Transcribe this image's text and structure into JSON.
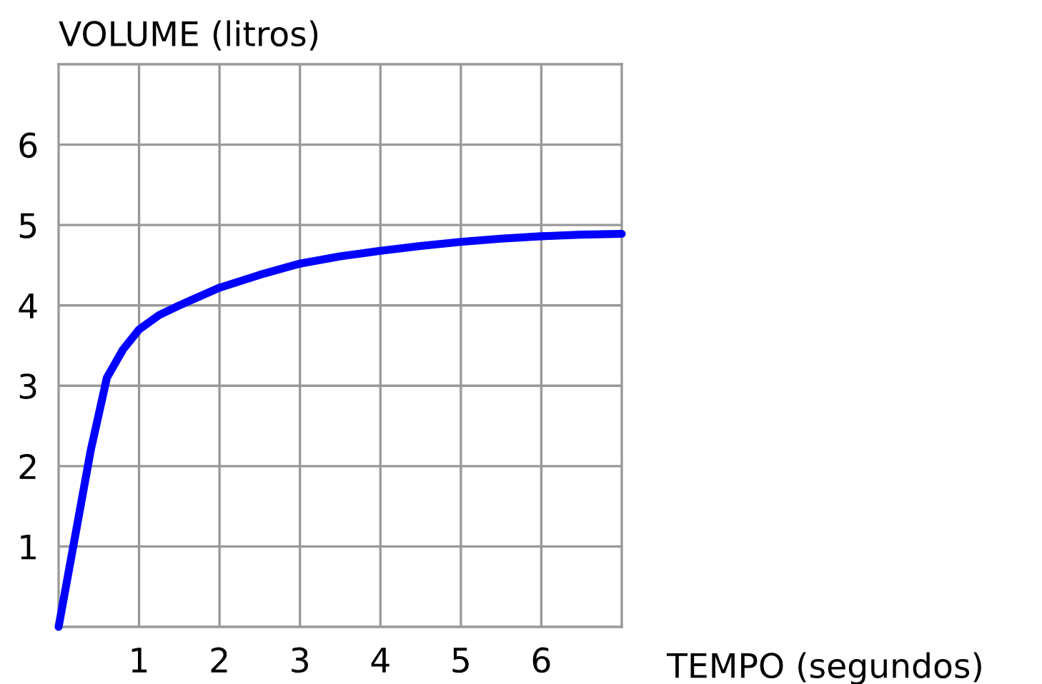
{
  "chart_data": {
    "type": "line",
    "xlabel": "TEMPO (segundos)",
    "ylabel": "VOLUME (litros)",
    "x": [
      0,
      0.2,
      0.4,
      0.6,
      0.8,
      1,
      1.25,
      1.5,
      2,
      2.5,
      3,
      3.5,
      4,
      4.5,
      5,
      5.5,
      6,
      6.5,
      7
    ],
    "series": [
      {
        "color": "#0000ff",
        "values": [
          0,
          1.1,
          2.2,
          3.1,
          3.45,
          3.7,
          3.88,
          4.0,
          4.22,
          4.38,
          4.52,
          4.61,
          4.68,
          4.74,
          4.79,
          4.83,
          4.86,
          4.88,
          4.89
        ]
      }
    ],
    "xlim": [
      0,
      7
    ],
    "ylim": [
      0,
      7
    ],
    "xticks": [
      1,
      2,
      3,
      4,
      5,
      6
    ],
    "yticks": [
      1,
      2,
      3,
      4,
      5,
      6
    ],
    "grid": true,
    "marker": "none",
    "line_style": "solid"
  }
}
